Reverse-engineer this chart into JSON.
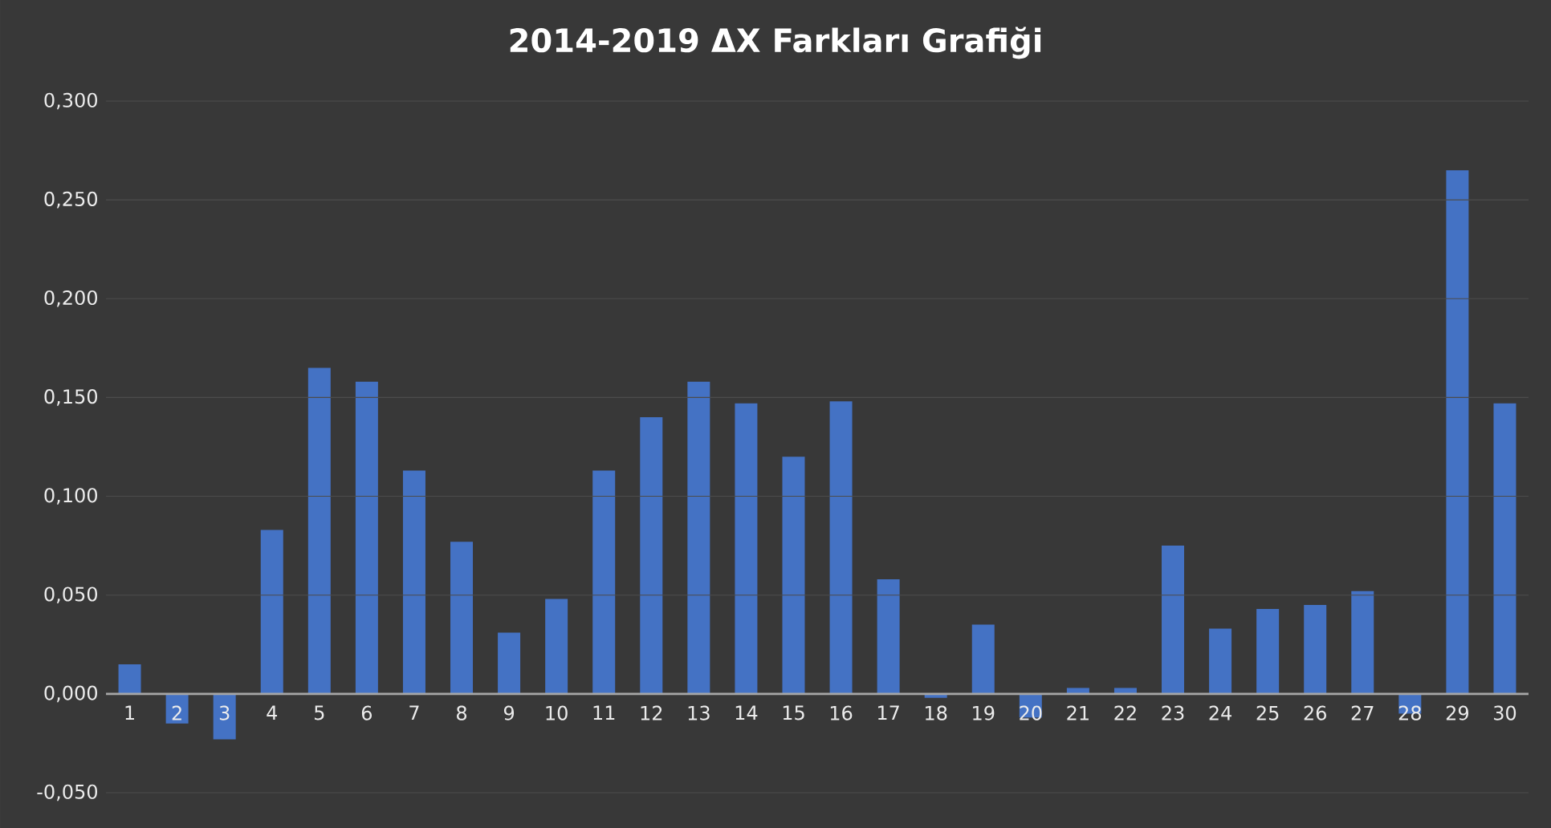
{
  "chart_data": {
    "type": "bar",
    "title": "2014-2019 ΔX Farkları Grafiği",
    "categories": [
      "1",
      "2",
      "3",
      "4",
      "5",
      "6",
      "7",
      "8",
      "9",
      "10",
      "11",
      "12",
      "13",
      "14",
      "15",
      "16",
      "17",
      "18",
      "19",
      "20",
      "21",
      "22",
      "23",
      "24",
      "25",
      "26",
      "27",
      "28",
      "29",
      "30"
    ],
    "values": [
      0.015,
      -0.015,
      -0.023,
      0.083,
      0.165,
      0.158,
      0.113,
      0.077,
      0.031,
      0.048,
      0.113,
      0.14,
      0.158,
      0.147,
      0.12,
      0.148,
      0.058,
      -0.002,
      0.035,
      -0.012,
      0.003,
      0.003,
      0.075,
      0.033,
      0.043,
      0.045,
      0.052,
      -0.01,
      0.265,
      0.147
    ],
    "color": "#4472c4",
    "ylim": [
      -0.05,
      0.3
    ],
    "yticks": [
      {
        "value": -0.05,
        "label": "-0,050"
      },
      {
        "value": 0,
        "label": "0,000"
      },
      {
        "value": 0.05,
        "label": "0,050"
      },
      {
        "value": 0.1,
        "label": "0,100"
      },
      {
        "value": 0.15,
        "label": "0,150"
      },
      {
        "value": 0.2,
        "label": "0,200"
      },
      {
        "value": 0.25,
        "label": "0,250"
      },
      {
        "value": 0.3,
        "label": "0,300"
      }
    ],
    "grid": "y"
  }
}
